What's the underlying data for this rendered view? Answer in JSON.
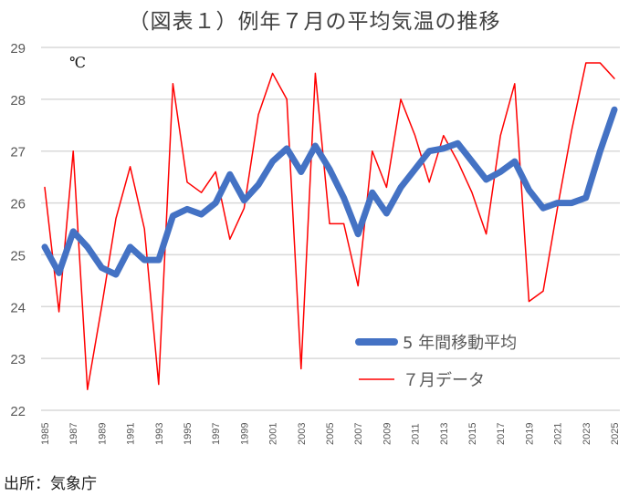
{
  "chart_data": {
    "type": "line",
    "title": "（図表１）例年７月の平均気温の推移",
    "ylabel": "℃",
    "xlabel": "",
    "ylim": [
      22,
      29
    ],
    "yticks": [
      22,
      23,
      24,
      25,
      26,
      27,
      28,
      29
    ],
    "xlim": [
      1985,
      2025
    ],
    "xticks": [
      1985,
      1987,
      1989,
      1991,
      1993,
      1995,
      1997,
      1999,
      2001,
      2003,
      2005,
      2007,
      2009,
      2011,
      2013,
      2015,
      2017,
      2019,
      2021,
      2023,
      2025
    ],
    "grid": true,
    "legend_position": "bottom-right",
    "x": [
      1985,
      1986,
      1987,
      1988,
      1989,
      1990,
      1991,
      1992,
      1993,
      1994,
      1995,
      1996,
      1997,
      1998,
      1999,
      2000,
      2001,
      2002,
      2003,
      2004,
      2005,
      2006,
      2007,
      2008,
      2009,
      2010,
      2011,
      2012,
      2013,
      2014,
      2015,
      2016,
      2017,
      2018,
      2019,
      2020,
      2021,
      2022,
      2023,
      2024,
      2025
    ],
    "series": [
      {
        "name": "5 年間移動平均",
        "color": "#4472C4",
        "values": [
          25.15,
          24.65,
          25.45,
          25.15,
          24.75,
          24.62,
          25.15,
          24.9,
          24.9,
          25.75,
          25.88,
          25.78,
          26.0,
          26.55,
          26.05,
          26.35,
          26.8,
          27.05,
          26.6,
          27.1,
          26.65,
          26.1,
          25.4,
          26.2,
          25.8,
          26.3,
          26.65,
          27.0,
          27.05,
          27.15,
          26.8,
          26.45,
          26.6,
          26.8,
          26.25,
          25.9,
          26.0,
          26.0,
          26.1,
          27.0,
          27.8
        ]
      },
      {
        "name": "７月データ",
        "color": "#FF0000",
        "values": [
          26.3,
          23.9,
          27.0,
          22.4,
          24.0,
          25.7,
          26.7,
          25.5,
          22.5,
          28.3,
          26.4,
          26.2,
          26.6,
          25.3,
          25.9,
          27.7,
          28.5,
          28.0,
          22.8,
          28.5,
          25.6,
          25.6,
          24.4,
          27.0,
          26.3,
          28.0,
          27.3,
          26.4,
          27.3,
          26.8,
          26.2,
          25.4,
          27.3,
          28.3,
          24.1,
          24.3,
          25.9,
          27.4,
          28.7,
          28.7,
          28.4
        ]
      }
    ]
  },
  "source": "出所：気象庁"
}
